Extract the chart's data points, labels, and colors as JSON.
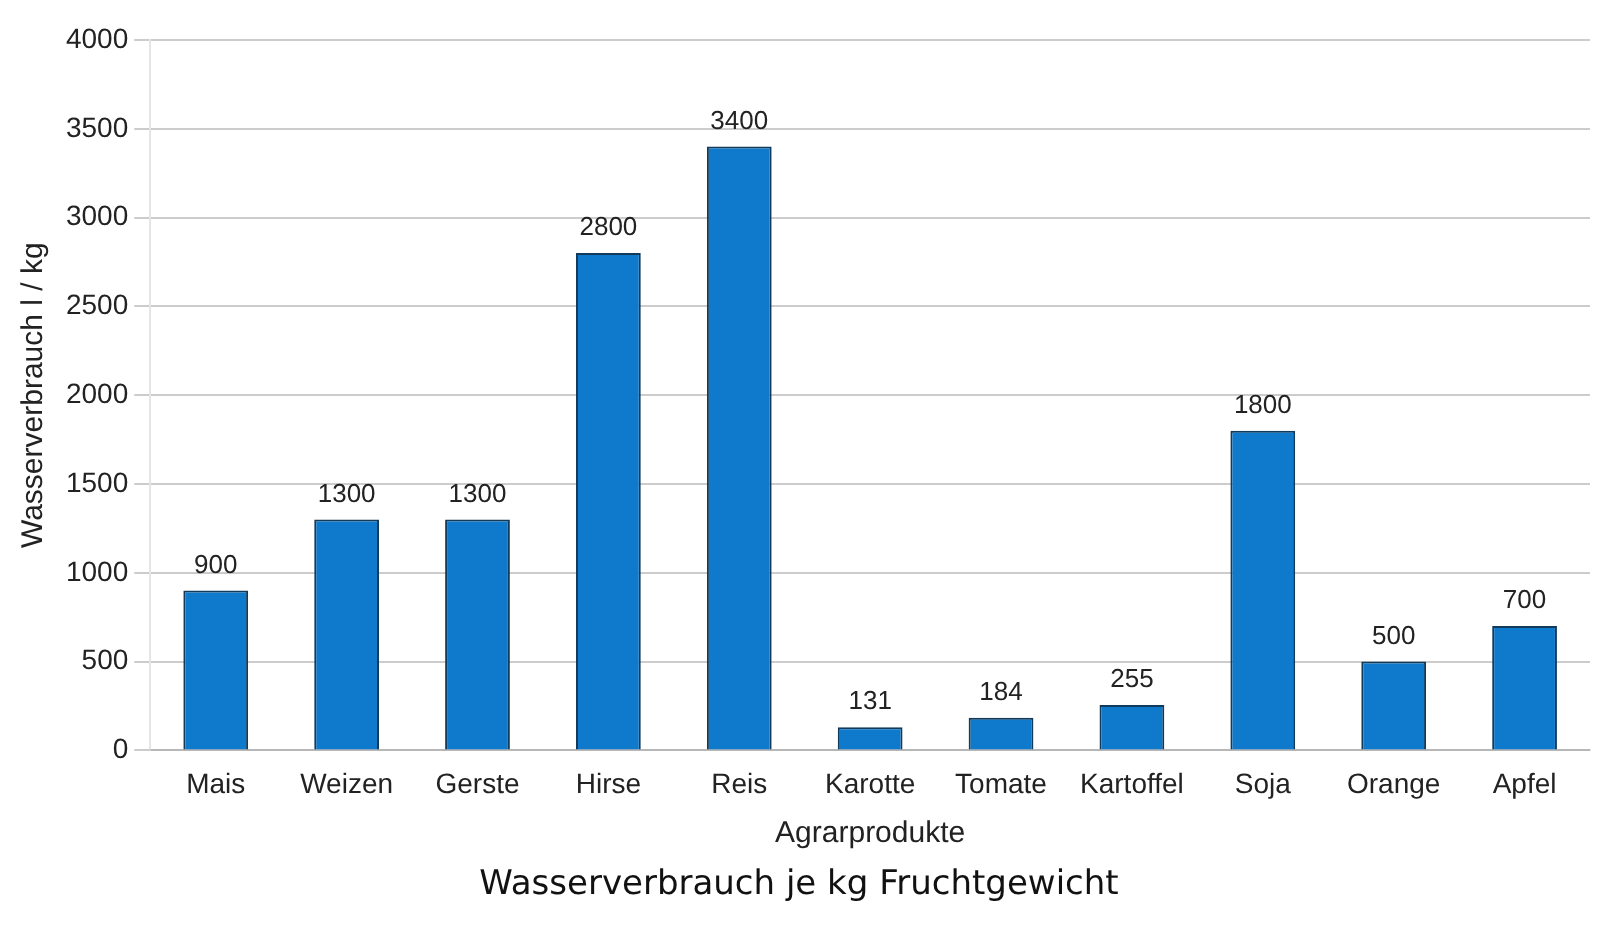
{
  "chart_data": {
    "type": "bar",
    "xlabel": "Agrarprodukte",
    "ylabel": "Wasserverbrauch l / kg",
    "categories": [
      "Mais",
      "Weizen",
      "Gerste",
      "Hirse",
      "Reis",
      "Karotte",
      "Tomate",
      "Kartoffel",
      "Soja",
      "Orange",
      "Apfel"
    ],
    "values": [
      900,
      1300,
      1300,
      2800,
      3400,
      131,
      184,
      255,
      1800,
      500,
      700
    ],
    "color": "#0f7acb",
    "ylim": [
      0,
      4000
    ],
    "yticks": [
      0,
      500,
      1000,
      1500,
      2000,
      2500,
      3000,
      3500,
      4000
    ],
    "grid": "y",
    "data_labels": true,
    "annotations": [
      "Wasserverbrauch je kg Fruchtgewicht"
    ]
  }
}
